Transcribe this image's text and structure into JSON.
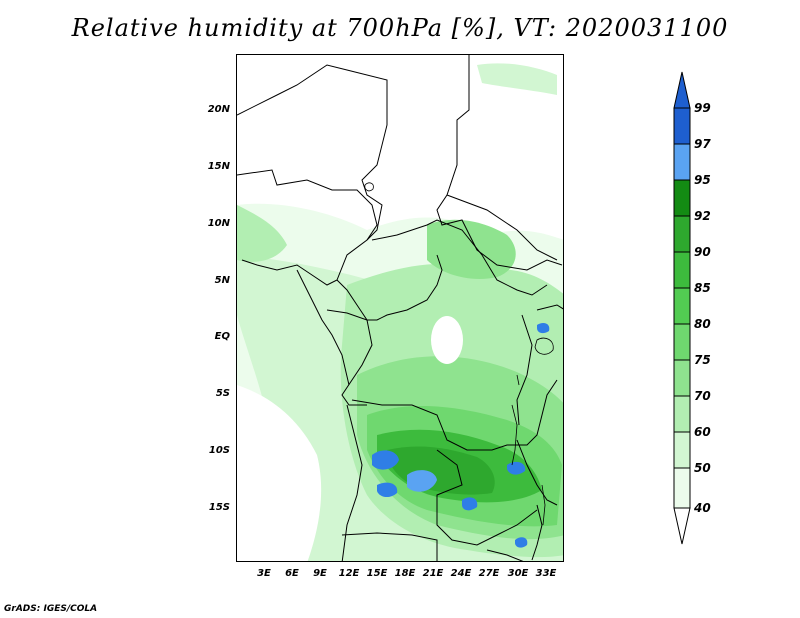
{
  "title": "Relative humidity at 700hPa [%], VT: 2020031100",
  "credit": "GrADS: IGES/COLA",
  "lat_labels": [
    "20N",
    "15N",
    "10N",
    "5N",
    "EQ",
    "5S",
    "10S",
    "15S"
  ],
  "lon_labels": [
    "3E",
    "6E",
    "9E",
    "12E",
    "15E",
    "18E",
    "21E",
    "24E",
    "27E",
    "30E",
    "33E"
  ],
  "colorbar": {
    "labels": [
      "99",
      "97",
      "95",
      "92",
      "90",
      "85",
      "80",
      "75",
      "70",
      "60",
      "50",
      "40"
    ],
    "colors": [
      "#1e5fcf",
      "#2f7ee6",
      "#5aa3f2",
      "#138b13",
      "#2ea82e",
      "#3dbb3d",
      "#52cc52",
      "#6fd86f",
      "#8fe38f",
      "#b2eeb2",
      "#d2f6d2",
      "#ecfcec"
    ]
  },
  "map": {
    "land_color": "#ffffff",
    "boundary_color": "#000000",
    "humidity_palette": [
      "#ecfcec",
      "#d2f6d2",
      "#b2eeb2",
      "#8fe38f",
      "#6fd86f",
      "#52cc52",
      "#3dbb3d",
      "#2ea82e",
      "#138b13",
      "#5aa3f2",
      "#2f7ee6"
    ]
  }
}
